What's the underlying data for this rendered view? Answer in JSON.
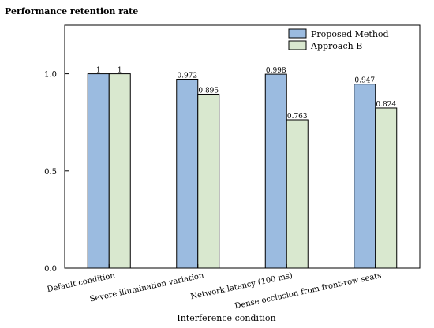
{
  "chart_data": {
    "type": "bar",
    "title": "",
    "ylabel": "Performance retention rate",
    "xlabel": "Interference condition",
    "categories": [
      "Default condition",
      "Severe illumination variation",
      "Network latency (100 ms)",
      "Dense occlusion from front-row seats"
    ],
    "series": [
      {
        "name": "Proposed Method",
        "values": [
          1,
          0.972,
          0.998,
          0.947
        ],
        "labels": [
          "1",
          "0.972",
          "0.998",
          "0.947"
        ],
        "color": "#9bbbe0"
      },
      {
        "name": "Approach B",
        "values": [
          1,
          0.895,
          0.763,
          0.824
        ],
        "labels": [
          "1",
          "0.895",
          "0.763",
          "0.824"
        ],
        "color": "#d9e8cf"
      }
    ],
    "ylim": [
      0,
      1.25
    ],
    "yticks": [
      0.0,
      0.5,
      1.0
    ],
    "ytick_labels": [
      "0.0",
      "0.5",
      "1.0"
    ],
    "grid": false,
    "legend_position": "top-right"
  }
}
